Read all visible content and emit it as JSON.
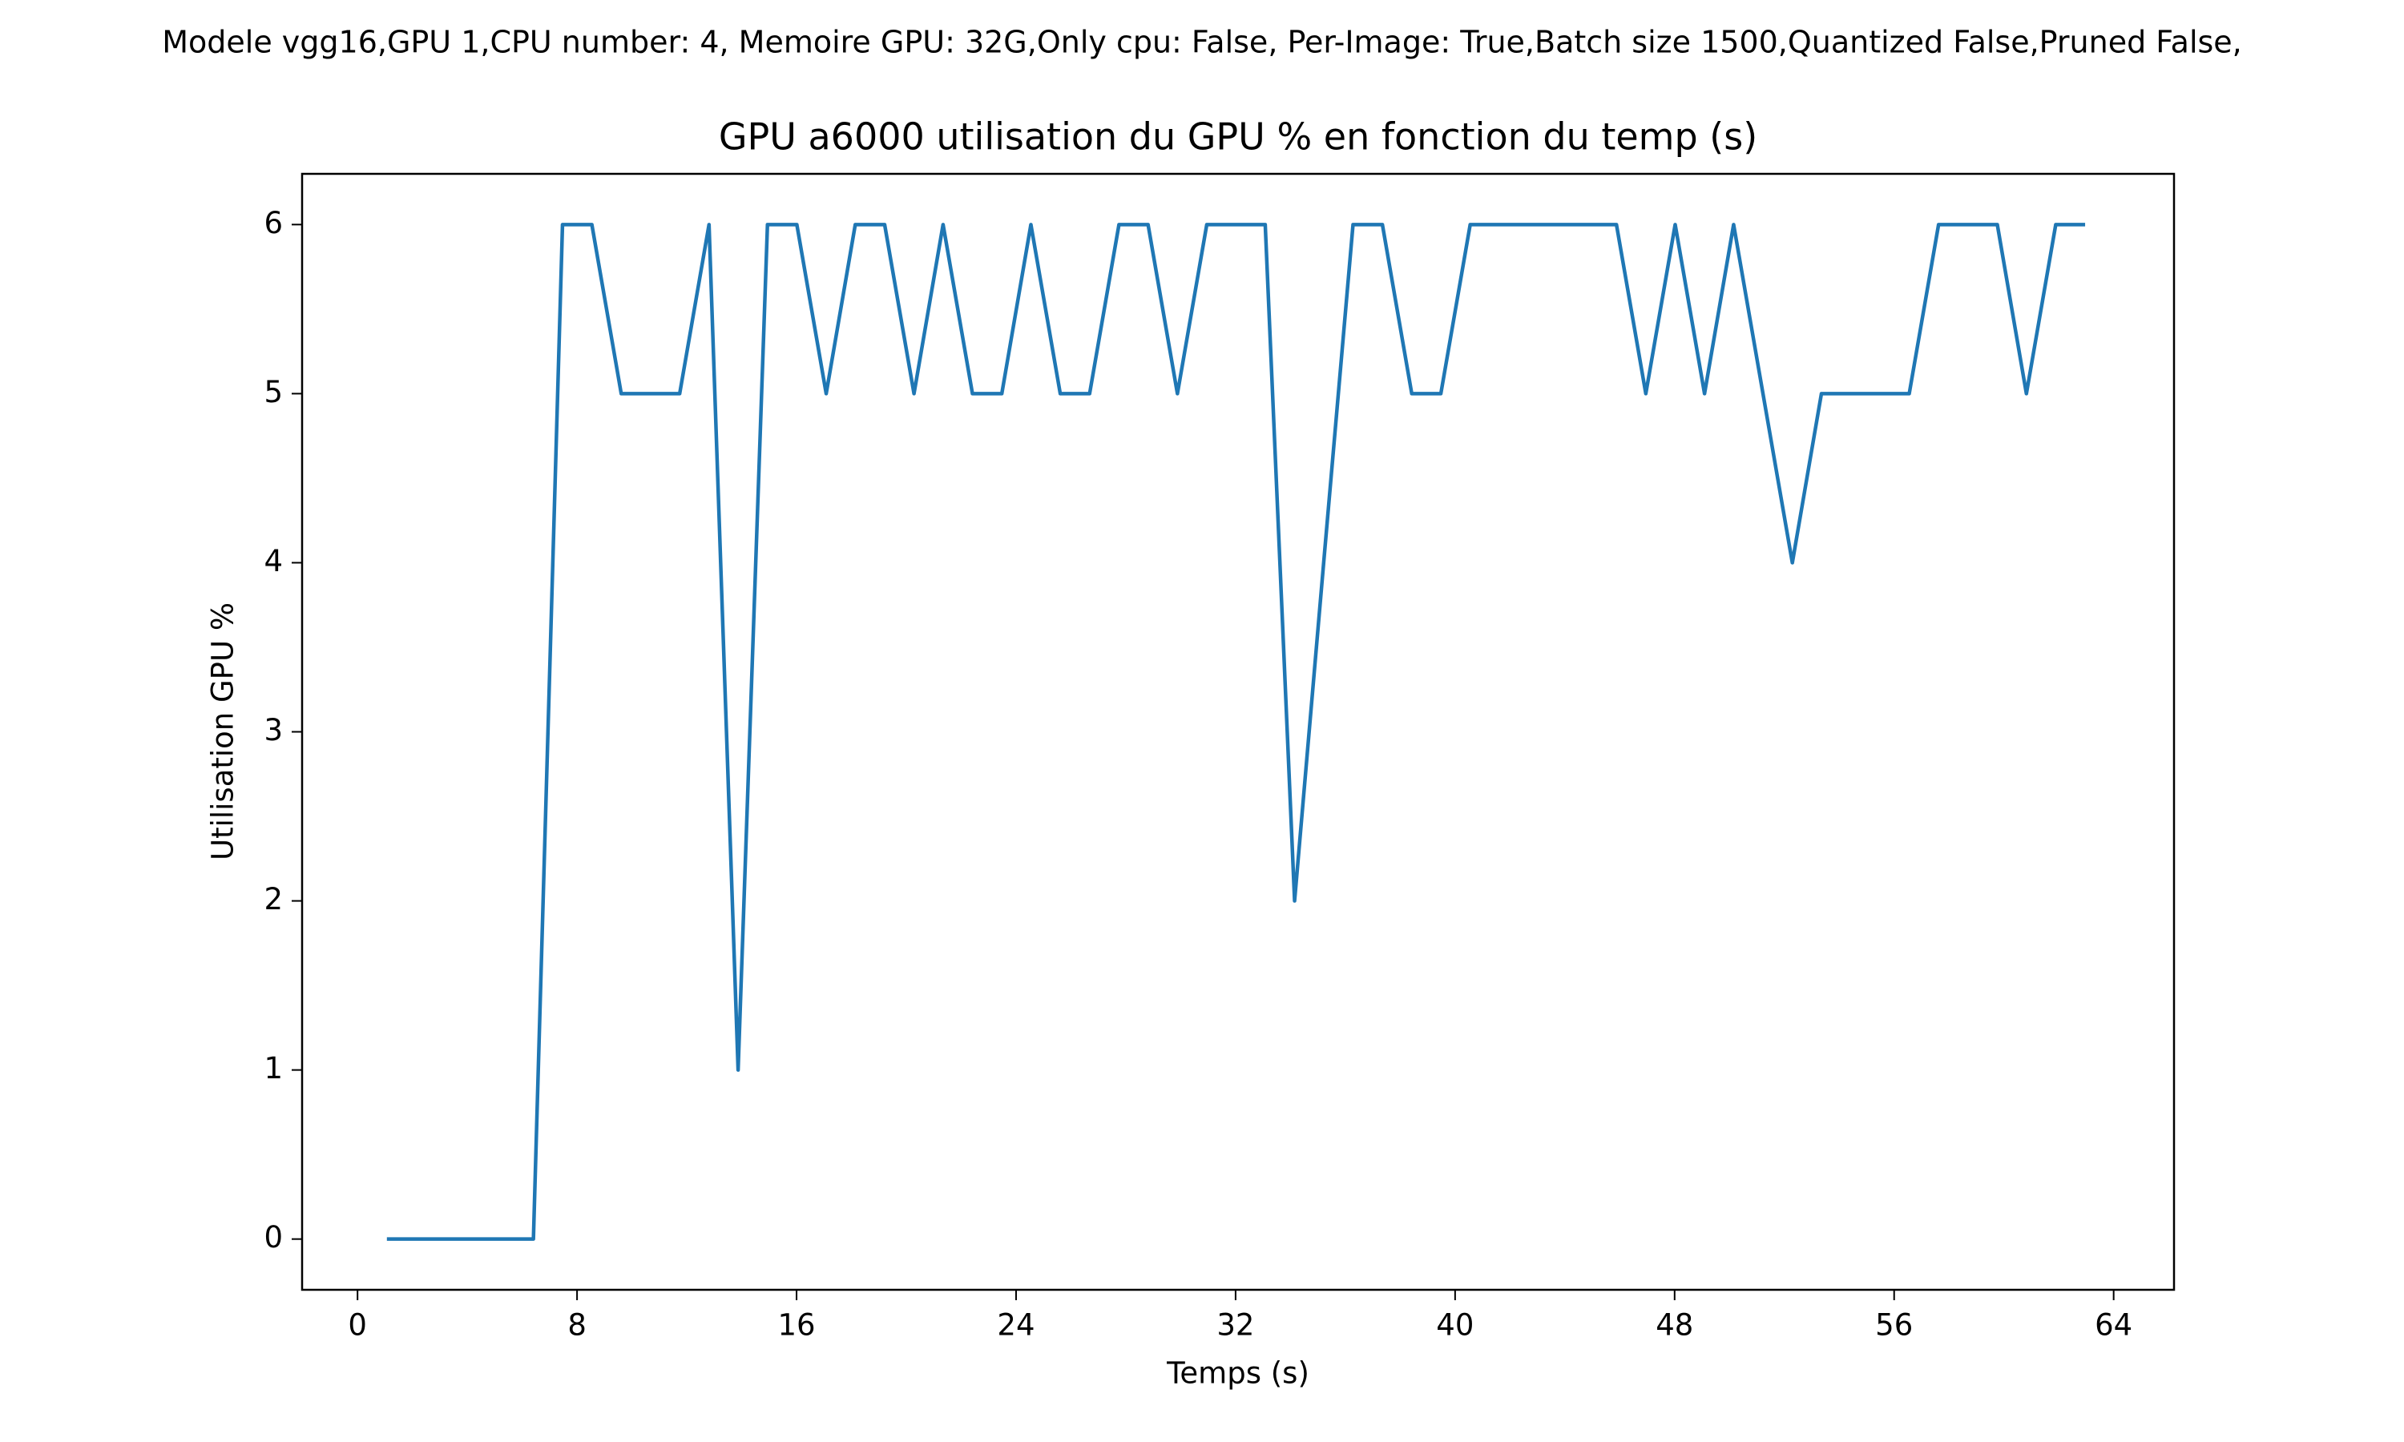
{
  "chart_data": {
    "type": "line",
    "suptitle": "Modele vgg16,GPU 1,CPU number: 4, Memoire GPU: 32G,Only cpu: False, Per-Image: True,Batch size 1500,Quantized False,Pruned False,",
    "title": "GPU a6000 utilisation du GPU % en fonction du temp (s)",
    "xlabel": "Temps (s)",
    "ylabel": "Utilisation GPU %",
    "x": [
      1.07,
      2.14,
      3.2,
      4.27,
      5.34,
      6.41,
      7.47,
      8.54,
      9.61,
      10.67,
      11.74,
      12.81,
      13.87,
      14.94,
      16.01,
      17.08,
      18.14,
      19.21,
      20.28,
      21.34,
      22.41,
      23.48,
      24.54,
      25.61,
      26.68,
      27.75,
      28.81,
      29.88,
      30.95,
      32.01,
      33.08,
      34.15,
      35.21,
      36.28,
      37.35,
      38.42,
      39.48,
      40.55,
      41.62,
      42.68,
      43.75,
      44.82,
      45.88,
      46.95,
      48.02,
      49.09,
      50.15,
      51.22,
      52.29,
      53.35,
      54.42,
      55.49,
      56.55,
      57.62,
      58.69,
      59.76,
      60.82,
      61.89,
      62.96
    ],
    "series": [
      {
        "name": "GPU",
        "color": "#1f77b4",
        "values": [
          0,
          0,
          0,
          0,
          0,
          0,
          6,
          6,
          5,
          5,
          5,
          6,
          1,
          6,
          6,
          5,
          6,
          6,
          5,
          6,
          5,
          5,
          6,
          5,
          5,
          6,
          6,
          5,
          6,
          6,
          6,
          2,
          4,
          6,
          6,
          5,
          5,
          6,
          6,
          6,
          6,
          6,
          6,
          5,
          6,
          5,
          6,
          5,
          4,
          5,
          5,
          5,
          5,
          6,
          6,
          6,
          5,
          6,
          6
        ]
      }
    ],
    "xlim": [
      -2.02,
      66.2
    ],
    "ylim": [
      -0.3,
      6.3
    ],
    "xticks": [
      0,
      8,
      16,
      24,
      32,
      40,
      48,
      56,
      64
    ],
    "yticks": [
      0,
      1,
      2,
      3,
      4,
      5,
      6
    ]
  }
}
